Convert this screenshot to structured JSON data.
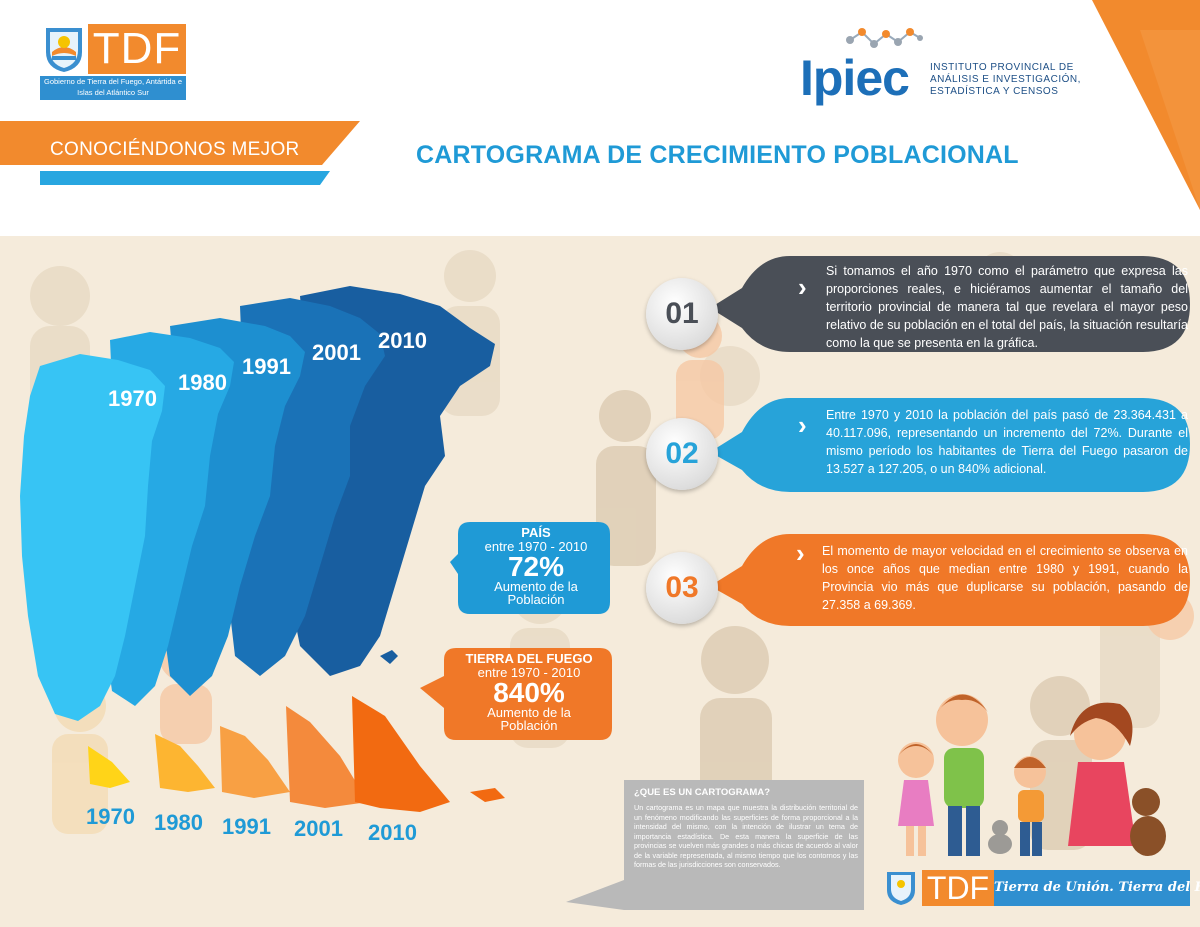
{
  "header": {
    "gov_logo_text": "TDF",
    "gov_caption": "Gobierno de Tierra del Fuego, Antártida e Islas del Atlántico Sur",
    "ipiec_name": "Ipiec",
    "ipiec_line1": "INSTITUTO PROVINCIAL DE",
    "ipiec_line2": "ANÁLISIS E INVESTIGACIÓN,",
    "ipiec_line3": "ESTADÍSTICA Y CENSOS",
    "section": "CONOCIÉNDONOS MEJOR",
    "title": "CARTOGRAMA DE CRECIMIENTO POBLACIONAL"
  },
  "map": {
    "years": [
      "1970",
      "1980",
      "1991",
      "2001",
      "2010"
    ],
    "colors_country": [
      "#37c4f4",
      "#26a9e4",
      "#1d8fd0",
      "#1a72b7",
      "#185ea0"
    ],
    "colors_tdf": [
      "#ffd418",
      "#fdb531",
      "#f8a044",
      "#f48a3c",
      "#f26a11"
    ]
  },
  "stats": {
    "pais": {
      "title": "PAÍS",
      "range": "entre 1970 - 2010",
      "value": "72%",
      "caption1": "Aumento de la",
      "caption2": "Población"
    },
    "tdf": {
      "title": "TIERRA DEL FUEGO",
      "range": "entre 1970 - 2010",
      "value": "840%",
      "caption1": "Aumento de la",
      "caption2": "Población"
    }
  },
  "steps": [
    {
      "number": "01",
      "text": "Si tomamos el año 1970 como el parámetro que expresa las proporciones reales, e hiciéramos aumentar el tamaño del territorio provincial de manera tal que revelara el mayor peso relativo de su población en el total del país, la situación resultaría como la que se presenta en la gráfica."
    },
    {
      "number": "02",
      "text": "Entre 1970 y 2010 la población del país pasó de 23.364.431 a 40.117.096, representando un incremento del 72%. Durante el mismo período los habitantes de Tierra del Fuego pasaron de 13.527 a 127.205, o un 840% adicional."
    },
    {
      "number": "03",
      "text": "El momento de mayor velocidad en el crecimiento se observa en los once años que median entre 1980 y 1991, cuando la Provincia vio más que duplicarse su población, pasando de 27.358 a 69.369."
    }
  ],
  "info": {
    "title": "¿QUE ES UN CARTOGRAMA?",
    "body": "Un cartograma es un mapa que muestra la distribución territorial de un fenómeno modificando las superficies de forma proporcional a la intensidad del mismo, con la intención de ilustrar un tema de importancia estadística. De esta manera la superficie de las provincias se vuelven más grandes o más chicas de acuerdo al valor de la variable representada, al mismo tiempo que los contornos y las formas de las jurisdicciones son conservados."
  },
  "footer": {
    "tdf": "TDF",
    "slogan": "Tierra de Unión. Tierra del Fuego."
  },
  "colors": {
    "orange": "#f28a2d",
    "blue": "#1f9ad6",
    "dark": "#4a4f57",
    "step2": "#27a3d9",
    "step3": "#f07828"
  }
}
